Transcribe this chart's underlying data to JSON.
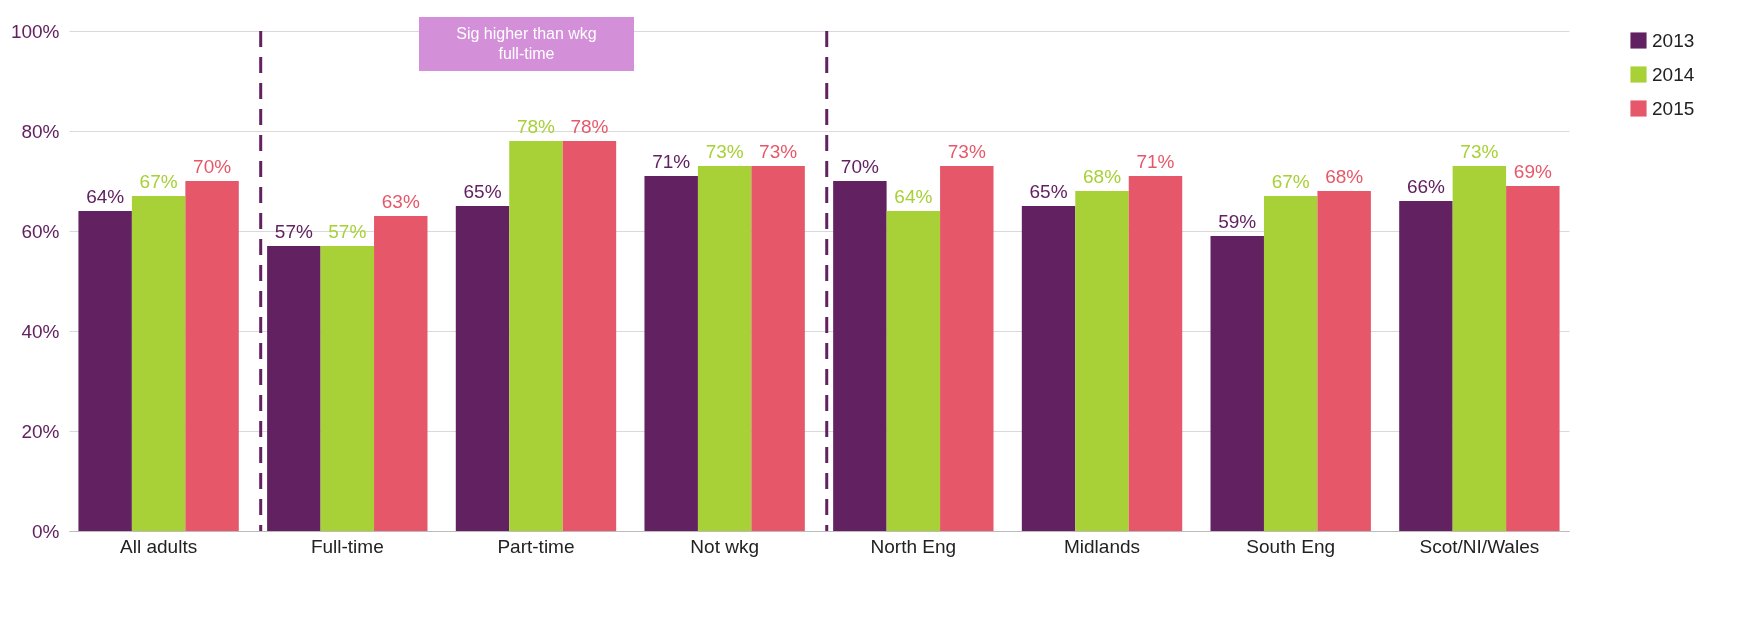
{
  "chart_data": {
    "type": "bar",
    "categories": [
      "All adults",
      "Full-time",
      "Part-time",
      "Not wkg",
      "North Eng",
      "Midlands",
      "South Eng",
      "Scot/NI/Wales"
    ],
    "series": [
      {
        "name": "2013",
        "color": "#622161",
        "values": [
          64,
          57,
          65,
          71,
          70,
          65,
          59,
          66
        ],
        "value_labels": [
          "64%",
          "57%",
          "65%",
          "71%",
          "70%",
          "65%",
          "59%",
          "66%"
        ]
      },
      {
        "name": "2014",
        "color": "#a8d037",
        "values": [
          67,
          57,
          78,
          73,
          64,
          68,
          67,
          73
        ],
        "value_labels": [
          "67%",
          "57%",
          "78%",
          "73%",
          "64%",
          "68%",
          "67%",
          "73%"
        ]
      },
      {
        "name": "2015",
        "color": "#e65869",
        "values": [
          70,
          63,
          78,
          73,
          73,
          71,
          68,
          69
        ],
        "value_labels": [
          "70%",
          "63%",
          "78%",
          "73%",
          "73%",
          "71%",
          "68%",
          "69%"
        ]
      }
    ],
    "ylim": [
      0,
      100
    ],
    "yticks": [
      {
        "value": 0,
        "label": "0%"
      },
      {
        "value": 20,
        "label": "20%"
      },
      {
        "value": 40,
        "label": "40%"
      },
      {
        "value": 60,
        "label": "60%"
      },
      {
        "value": 80,
        "label": "80%"
      },
      {
        "value": 100,
        "label": "100%"
      }
    ],
    "grid": "y",
    "legend": "right",
    "annotations": [
      "Sig higher than wkg\nfull-time"
    ]
  }
}
